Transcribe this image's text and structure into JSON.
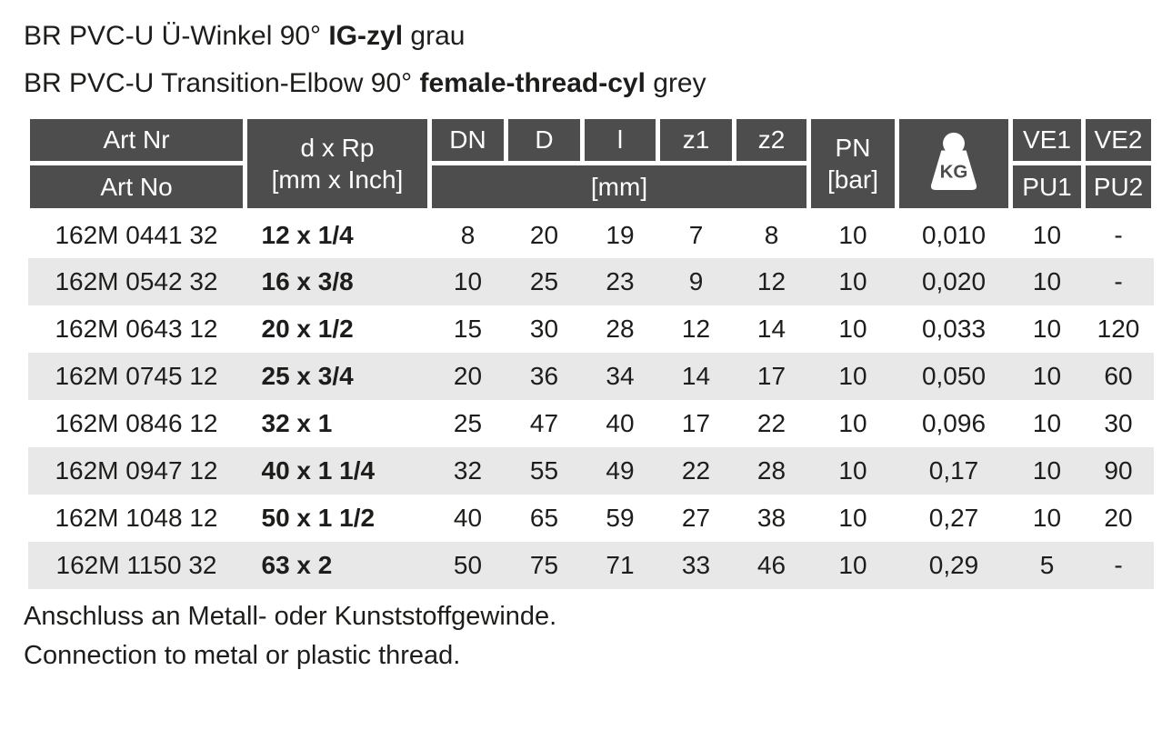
{
  "page": {
    "title_de": {
      "prefix": "BR PVC-U Ü-Winkel 90° ",
      "bold": "IG-zyl",
      "suffix": " grau"
    },
    "title_en": {
      "prefix": "BR PVC-U Transition-Elbow 90° ",
      "bold": "female-thread-cyl",
      "suffix": " grey"
    },
    "footnote_de": "Anschluss an Metall- oder Kunststoffgewinde.",
    "footnote_en": "Connection to metal or plastic thread."
  },
  "colors": {
    "header_bg": "#4d4d4d",
    "header_text": "#ffffff",
    "zebra_row": "#e8e8e8",
    "body_text": "#1d1d1b"
  },
  "table": {
    "header": {
      "art_nr": "Art Nr",
      "art_no": "Art No",
      "dxrp_line1": "d x Rp",
      "dxrp_line2": "[mm x Inch]",
      "dn": "DN",
      "d": "D",
      "l": "l",
      "z1": "z1",
      "z2": "z2",
      "mm_unit": "[mm]",
      "pn_line1": "PN",
      "pn_line2": "[bar]",
      "kg_icon_label": "KG",
      "ve1": "VE1",
      "ve2": "VE2",
      "pu1": "PU1",
      "pu2": "PU2"
    },
    "rows": [
      {
        "art": "162M 0441 32",
        "dxrp": "12 x 1/4",
        "dn": "8",
        "d": "20",
        "l": "19",
        "z1": "7",
        "z2": "8",
        "pn": "10",
        "kg": "0,010",
        "ve1": "10",
        "ve2": "-"
      },
      {
        "art": "162M 0542 32",
        "dxrp": "16 x 3/8",
        "dn": "10",
        "d": "25",
        "l": "23",
        "z1": "9",
        "z2": "12",
        "pn": "10",
        "kg": "0,020",
        "ve1": "10",
        "ve2": "-"
      },
      {
        "art": "162M 0643 12",
        "dxrp": "20 x 1/2",
        "dn": "15",
        "d": "30",
        "l": "28",
        "z1": "12",
        "z2": "14",
        "pn": "10",
        "kg": "0,033",
        "ve1": "10",
        "ve2": "120"
      },
      {
        "art": "162M 0745 12",
        "dxrp": "25 x 3/4",
        "dn": "20",
        "d": "36",
        "l": "34",
        "z1": "14",
        "z2": "17",
        "pn": "10",
        "kg": "0,050",
        "ve1": "10",
        "ve2": "60"
      },
      {
        "art": "162M 0846 12",
        "dxrp": "32 x 1",
        "dn": "25",
        "d": "47",
        "l": "40",
        "z1": "17",
        "z2": "22",
        "pn": "10",
        "kg": "0,096",
        "ve1": "10",
        "ve2": "30"
      },
      {
        "art": "162M 0947 12",
        "dxrp": "40 x 1 1/4",
        "dn": "32",
        "d": "55",
        "l": "49",
        "z1": "22",
        "z2": "28",
        "pn": "10",
        "kg": "0,17",
        "ve1": "10",
        "ve2": "90"
      },
      {
        "art": "162M 1048 12",
        "dxrp": "50 x 1 1/2",
        "dn": "40",
        "d": "65",
        "l": "59",
        "z1": "27",
        "z2": "38",
        "pn": "10",
        "kg": "0,27",
        "ve1": "10",
        "ve2": "20"
      },
      {
        "art": "162M 1150 32",
        "dxrp": "63 x 2",
        "dn": "50",
        "d": "75",
        "l": "71",
        "z1": "33",
        "z2": "46",
        "pn": "10",
        "kg": "0,29",
        "ve1": "5",
        "ve2": "-"
      }
    ]
  }
}
